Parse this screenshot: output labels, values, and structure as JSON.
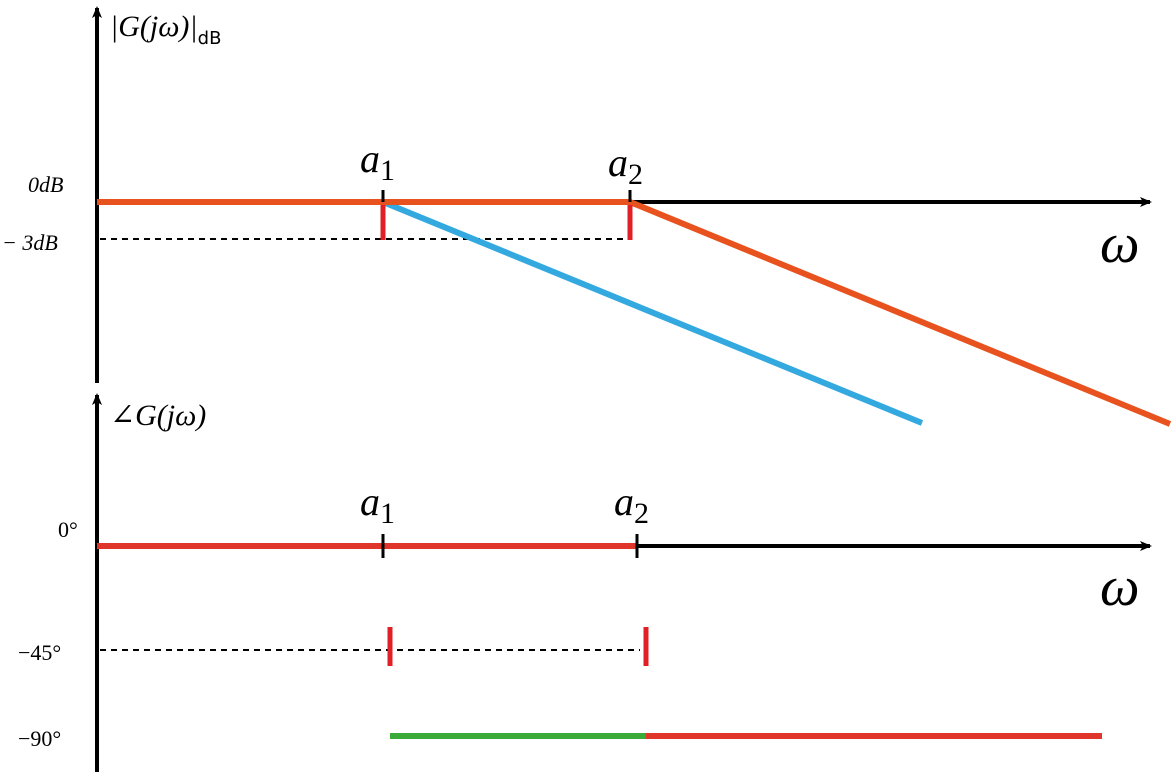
{
  "magnitude": {
    "axis_label": "|G(jω)|",
    "axis_label_sub": "dB",
    "ticks": [
      "0dB",
      "− 3dB"
    ],
    "markers": [
      {
        "base": "a",
        "sub": "1"
      },
      {
        "base": "a",
        "sub": "2"
      }
    ],
    "x_label": "ω"
  },
  "phase": {
    "axis_label": "∠G(jω)",
    "ticks": [
      "0°",
      "−45°",
      "−90°"
    ],
    "markers": [
      {
        "base": "a",
        "sub": "1"
      },
      {
        "base": "a",
        "sub": "2"
      }
    ],
    "x_label": "ω"
  }
}
